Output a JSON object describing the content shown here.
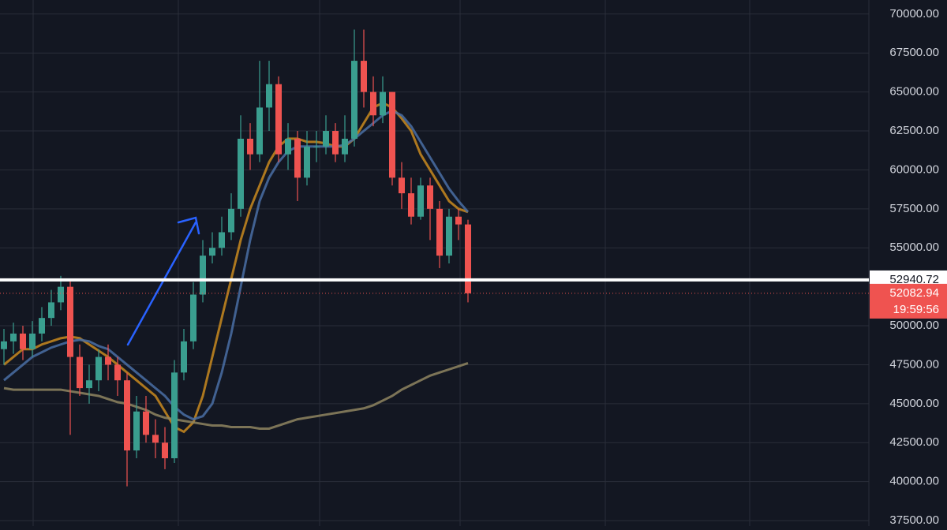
{
  "chart_data": {
    "type": "candlestick",
    "ylim": [
      37150,
      70900
    ],
    "yticks": [
      {
        "value": 37500,
        "label": "37500.00"
      },
      {
        "value": 40000,
        "label": "40000.00"
      },
      {
        "value": 42500,
        "label": "42500.00"
      },
      {
        "value": 45000,
        "label": "45000.00"
      },
      {
        "value": 47500,
        "label": "47500.00"
      },
      {
        "value": 50000,
        "label": "50000.00"
      },
      {
        "value": 55000,
        "label": "55000.00"
      },
      {
        "value": 57500,
        "label": "57500.00"
      },
      {
        "value": 60000,
        "label": "60000.00"
      },
      {
        "value": 62500,
        "label": "62500.00"
      },
      {
        "value": 65000,
        "label": "65000.00"
      },
      {
        "value": 67500,
        "label": "67500.00"
      },
      {
        "value": 70000,
        "label": "70000.00"
      }
    ],
    "grid": true,
    "up_color": "#3a9e8f",
    "down_color": "#ef5350",
    "open": [
      48500,
      49000,
      49500,
      48500,
      49500,
      50500,
      51500,
      52500,
      48000,
      46000,
      46500,
      48000,
      47500,
      46500,
      42000,
      44500,
      43000,
      42500,
      41500,
      47000,
      49000,
      52000,
      54500,
      55000,
      56000,
      57500,
      62000,
      61000,
      64000,
      65500,
      61000,
      62000,
      59500,
      61500,
      61500,
      62500,
      61000,
      62000,
      67000,
      65000,
      63500,
      65000,
      59500,
      58500,
      57000,
      59000,
      57500,
      54500,
      57000,
      56500
    ],
    "high": [
      49800,
      50200,
      50000,
      50300,
      51200,
      52300,
      53200,
      53000,
      48800,
      47500,
      48500,
      48800,
      48000,
      47000,
      45500,
      45500,
      44000,
      43500,
      47800,
      49800,
      52800,
      55500,
      56000,
      57000,
      58500,
      63500,
      63000,
      67000,
      67000,
      66000,
      63000,
      62500,
      62500,
      62500,
      63500,
      63000,
      63500,
      69000,
      69000,
      66000,
      66000,
      65000,
      60500,
      59500,
      59500,
      59500,
      58000,
      57500,
      57500,
      56800
    ],
    "low": [
      47500,
      48200,
      47800,
      48000,
      49000,
      50000,
      51000,
      43000,
      45500,
      45000,
      45800,
      46500,
      45500,
      39700,
      41500,
      42500,
      41500,
      40800,
      41200,
      46500,
      48500,
      51500,
      54000,
      54500,
      55500,
      57000,
      60000,
      60500,
      62500,
      60500,
      60000,
      58000,
      59000,
      60500,
      61000,
      60500,
      60500,
      61500,
      64000,
      62800,
      63000,
      59000,
      57500,
      56500,
      56800,
      55500,
      53700,
      54000,
      55500,
      51500
    ],
    "close": [
      49000,
      49500,
      48500,
      49500,
      50500,
      51500,
      52500,
      48000,
      46000,
      46500,
      48000,
      47500,
      46500,
      42000,
      44500,
      43000,
      42500,
      41500,
      47000,
      49000,
      52000,
      54500,
      55000,
      56000,
      57500,
      62000,
      61000,
      64000,
      65500,
      61000,
      62000,
      59500,
      61500,
      61500,
      62500,
      61000,
      62000,
      67000,
      65000,
      63500,
      65000,
      59500,
      58500,
      57000,
      59000,
      57500,
      54500,
      57000,
      56500,
      52082.94
    ],
    "lines": [
      {
        "color": "#c98a1e",
        "values": [
          47500,
          48000,
          48500,
          48500,
          48800,
          49000,
          49200,
          49300,
          49200,
          48800,
          48400,
          48000,
          47500,
          47000,
          46500,
          46000,
          45500,
          44500,
          43500,
          43200,
          43800,
          45500,
          48000,
          50500,
          53000,
          55500,
          57500,
          59000,
          60500,
          61500,
          62000,
          62000,
          61800,
          61800,
          61700,
          61500,
          61500,
          62000,
          63000,
          64000,
          64300,
          64000,
          63300,
          62500,
          61000,
          60000,
          59000,
          58000,
          57500,
          57300
        ]
      },
      {
        "color": "#4a6fa5",
        "values": [
          46500,
          47000,
          47500,
          48000,
          48300,
          48600,
          48800,
          49000,
          49100,
          49000,
          48700,
          48500,
          48000,
          47500,
          47000,
          46500,
          46000,
          45500,
          44800,
          44300,
          44000,
          44200,
          45000,
          47000,
          49500,
          52500,
          55500,
          58000,
          59500,
          60500,
          61200,
          61500,
          61500,
          61500,
          61500,
          61500,
          61600,
          62000,
          62500,
          63000,
          63500,
          63800,
          63500,
          62800,
          61800,
          60800,
          59800,
          58800,
          58000,
          57300
        ]
      },
      {
        "color": "#8f8560",
        "values": [
          46000,
          45900,
          45900,
          45900,
          45900,
          45900,
          45900,
          45800,
          45700,
          45600,
          45500,
          45300,
          45100,
          45000,
          44800,
          44600,
          44300,
          44100,
          44000,
          43900,
          43800,
          43700,
          43600,
          43600,
          43500,
          43500,
          43500,
          43400,
          43400,
          43600,
          43800,
          44000,
          44100,
          44200,
          44300,
          44400,
          44500,
          44600,
          44700,
          44900,
          45200,
          45500,
          45900,
          46200,
          46500,
          46800,
          47000,
          47200,
          47400,
          47600
        ]
      }
    ],
    "level": 52940.72,
    "current_price": 52082.94,
    "countdown": "19:59:56"
  }
}
